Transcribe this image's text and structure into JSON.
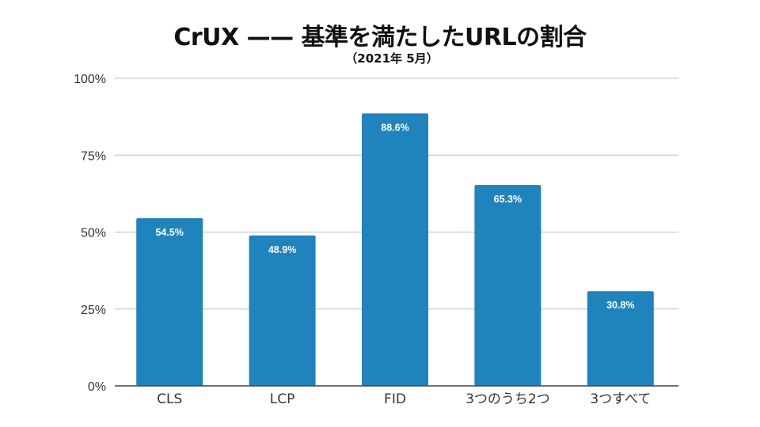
{
  "chart_data": {
    "type": "bar",
    "title": "CrUX —— 基準を満たしたURLの割合",
    "subtitle": "（2021年 5月）",
    "categories": [
      "CLS",
      "LCP",
      "FID",
      "3つのうち2つ",
      "3つすべて"
    ],
    "values": [
      54.5,
      48.9,
      88.6,
      65.3,
      30.8
    ],
    "data_labels": [
      "54.5%",
      "48.9%",
      "88.6%",
      "65.3%",
      "30.8%"
    ],
    "ylim": [
      0,
      100
    ],
    "yticks": [
      0,
      25,
      50,
      75,
      100
    ],
    "ytick_labels": [
      "0%",
      "25%",
      "50%",
      "75%",
      "100%"
    ],
    "xlabel": "",
    "ylabel": "",
    "grid": true,
    "bar_color": "#1f83be",
    "grid_color": "#cccccc"
  }
}
